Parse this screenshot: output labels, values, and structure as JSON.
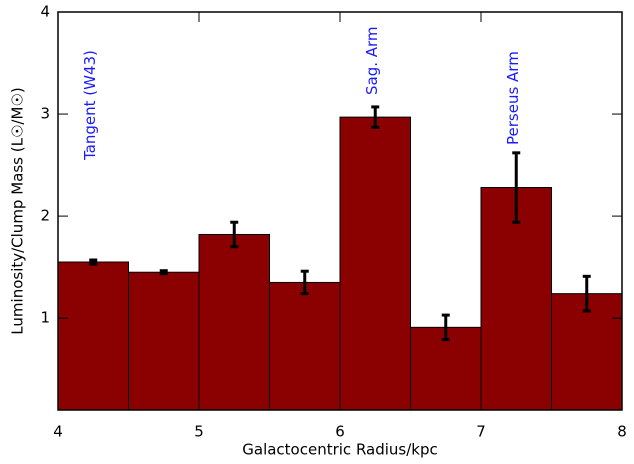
{
  "chart_data": {
    "type": "histogram",
    "xlabel": "Galactocentric Radius/kpc",
    "ylabel": "Luminosity/Clump Mass (L☉/M☉)",
    "bins": [
      4,
      4.5,
      5,
      5.5,
      6,
      6.5,
      7,
      7.5,
      8
    ],
    "values": [
      1.55,
      1.45,
      1.82,
      1.35,
      2.97,
      0.91,
      2.28,
      1.24
    ],
    "errors": [
      0.02,
      0.015,
      0.12,
      0.11,
      0.1,
      0.12,
      0.34,
      0.17
    ],
    "color": "#8b0000",
    "edgecolor": "#000000",
    "xlim": [
      4,
      8
    ],
    "xticks": [
      4,
      5,
      6,
      7,
      8
    ],
    "ylim": [
      0.1,
      4
    ],
    "yticks": [
      1,
      2,
      3,
      4
    ],
    "annotations": [
      "Tangent (W43)",
      "Sag. Arm",
      "Perseus Arm"
    ],
    "annotation_color": "#1a1aff"
  }
}
